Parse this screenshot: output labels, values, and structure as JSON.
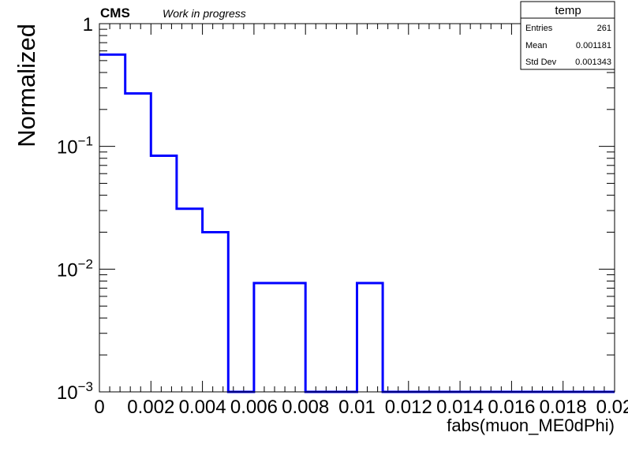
{
  "header": {
    "experiment": "CMS",
    "status": "Work in progress"
  },
  "stats_box": {
    "title": "temp",
    "rows": [
      {
        "label": "Entries",
        "value": "261"
      },
      {
        "label": "Mean",
        "value": "0.001181"
      },
      {
        "label": "Std Dev",
        "value": "0.001343"
      }
    ]
  },
  "chart_data": {
    "type": "line",
    "style": "step histogram",
    "title": "",
    "xlabel": "fabs(muon_ME0dPhi)",
    "ylabel": "Normalized",
    "xlim": [
      0,
      0.02
    ],
    "ylim": [
      0.001,
      1
    ],
    "yscale": "log",
    "x_tick_labels": [
      "0",
      "0.002",
      "0.004",
      "0.006",
      "0.008",
      "0.01",
      "0.012",
      "0.014",
      "0.016",
      "0.018",
      "0.02"
    ],
    "y_tick_labels": [
      {
        "value": 1,
        "base": "1",
        "exp": ""
      },
      {
        "value": 0.1,
        "base": "10",
        "exp": "−1"
      },
      {
        "value": 0.01,
        "base": "10",
        "exp": "−2"
      },
      {
        "value": 0.001,
        "base": "10",
        "exp": "−3"
      }
    ],
    "bin_edges": [
      0,
      0.001,
      0.002,
      0.003,
      0.004,
      0.005,
      0.006,
      0.007,
      0.008,
      0.009,
      0.01,
      0.011,
      0.012,
      0.013,
      0.014,
      0.015,
      0.016,
      0.017,
      0.018,
      0.019,
      0.02
    ],
    "series": [
      {
        "values": [
          0.56,
          0.27,
          0.084,
          0.031,
          0.02,
          0,
          0.0077,
          0.0077,
          0,
          0,
          0.0077,
          0,
          0,
          0,
          0,
          0,
          0,
          0,
          0,
          0
        ]
      }
    ],
    "line_color": "#0000ff",
    "grid": false,
    "legend": "none"
  }
}
